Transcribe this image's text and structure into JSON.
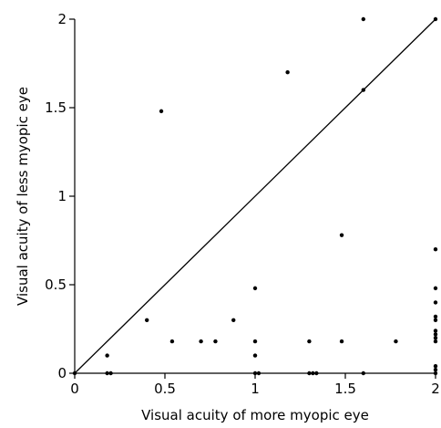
{
  "chart_data": {
    "type": "scatter",
    "title": "",
    "xlabel": "Visual acuity of more myopic eye",
    "ylabel": "Visual acuity of less myopic eye",
    "xlim": [
      0,
      2
    ],
    "ylim": [
      0,
      2
    ],
    "xticks": [
      {
        "value": 0,
        "label": "0"
      },
      {
        "value": 0.5,
        "label": "0.5"
      },
      {
        "value": 1,
        "label": "1"
      },
      {
        "value": 1.5,
        "label": "1.5"
      },
      {
        "value": 2,
        "label": "2"
      }
    ],
    "yticks": [
      {
        "value": 0,
        "label": "0"
      },
      {
        "value": 0.5,
        "label": "0.5"
      },
      {
        "value": 1,
        "label": "1"
      },
      {
        "value": 1.5,
        "label": "1.5"
      },
      {
        "value": 2,
        "label": "2"
      }
    ],
    "reference_line": {
      "type": "identity",
      "from": [
        0,
        0
      ],
      "to": [
        2,
        2
      ]
    },
    "grid": false,
    "legend": "none",
    "marker_color": "#000000",
    "points": [
      {
        "x": 0,
        "y": 0
      },
      {
        "x": 0.18,
        "y": 0.1
      },
      {
        "x": 0.18,
        "y": 0
      },
      {
        "x": 0.2,
        "y": 0
      },
      {
        "x": 0.4,
        "y": 0.3
      },
      {
        "x": 0.48,
        "y": 1.48
      },
      {
        "x": 0.54,
        "y": 0.18
      },
      {
        "x": 0.7,
        "y": 0.18
      },
      {
        "x": 0.78,
        "y": 0.18
      },
      {
        "x": 0.88,
        "y": 0.3
      },
      {
        "x": 1.0,
        "y": 0.48
      },
      {
        "x": 1.0,
        "y": 0.18
      },
      {
        "x": 1.0,
        "y": 0.1
      },
      {
        "x": 1.0,
        "y": 0
      },
      {
        "x": 1.02,
        "y": 0
      },
      {
        "x": 1.18,
        "y": 1.7
      },
      {
        "x": 1.3,
        "y": 0.18
      },
      {
        "x": 1.3,
        "y": 0
      },
      {
        "x": 1.32,
        "y": 0
      },
      {
        "x": 1.34,
        "y": 0
      },
      {
        "x": 1.48,
        "y": 0.78
      },
      {
        "x": 1.48,
        "y": 0.18
      },
      {
        "x": 1.6,
        "y": 2.0
      },
      {
        "x": 1.6,
        "y": 1.6
      },
      {
        "x": 1.6,
        "y": 0
      },
      {
        "x": 1.78,
        "y": 0.18
      },
      {
        "x": 2.0,
        "y": 2.0
      },
      {
        "x": 2.0,
        "y": 0.7
      },
      {
        "x": 2.0,
        "y": 0.48
      },
      {
        "x": 2.0,
        "y": 0.4
      },
      {
        "x": 2.0,
        "y": 0.32
      },
      {
        "x": 2.0,
        "y": 0.3
      },
      {
        "x": 2.0,
        "y": 0.24
      },
      {
        "x": 2.0,
        "y": 0.22
      },
      {
        "x": 2.0,
        "y": 0.2
      },
      {
        "x": 2.0,
        "y": 0.18
      },
      {
        "x": 2.0,
        "y": 0.04
      },
      {
        "x": 2.0,
        "y": 0.02
      },
      {
        "x": 2.0,
        "y": 0
      }
    ]
  }
}
